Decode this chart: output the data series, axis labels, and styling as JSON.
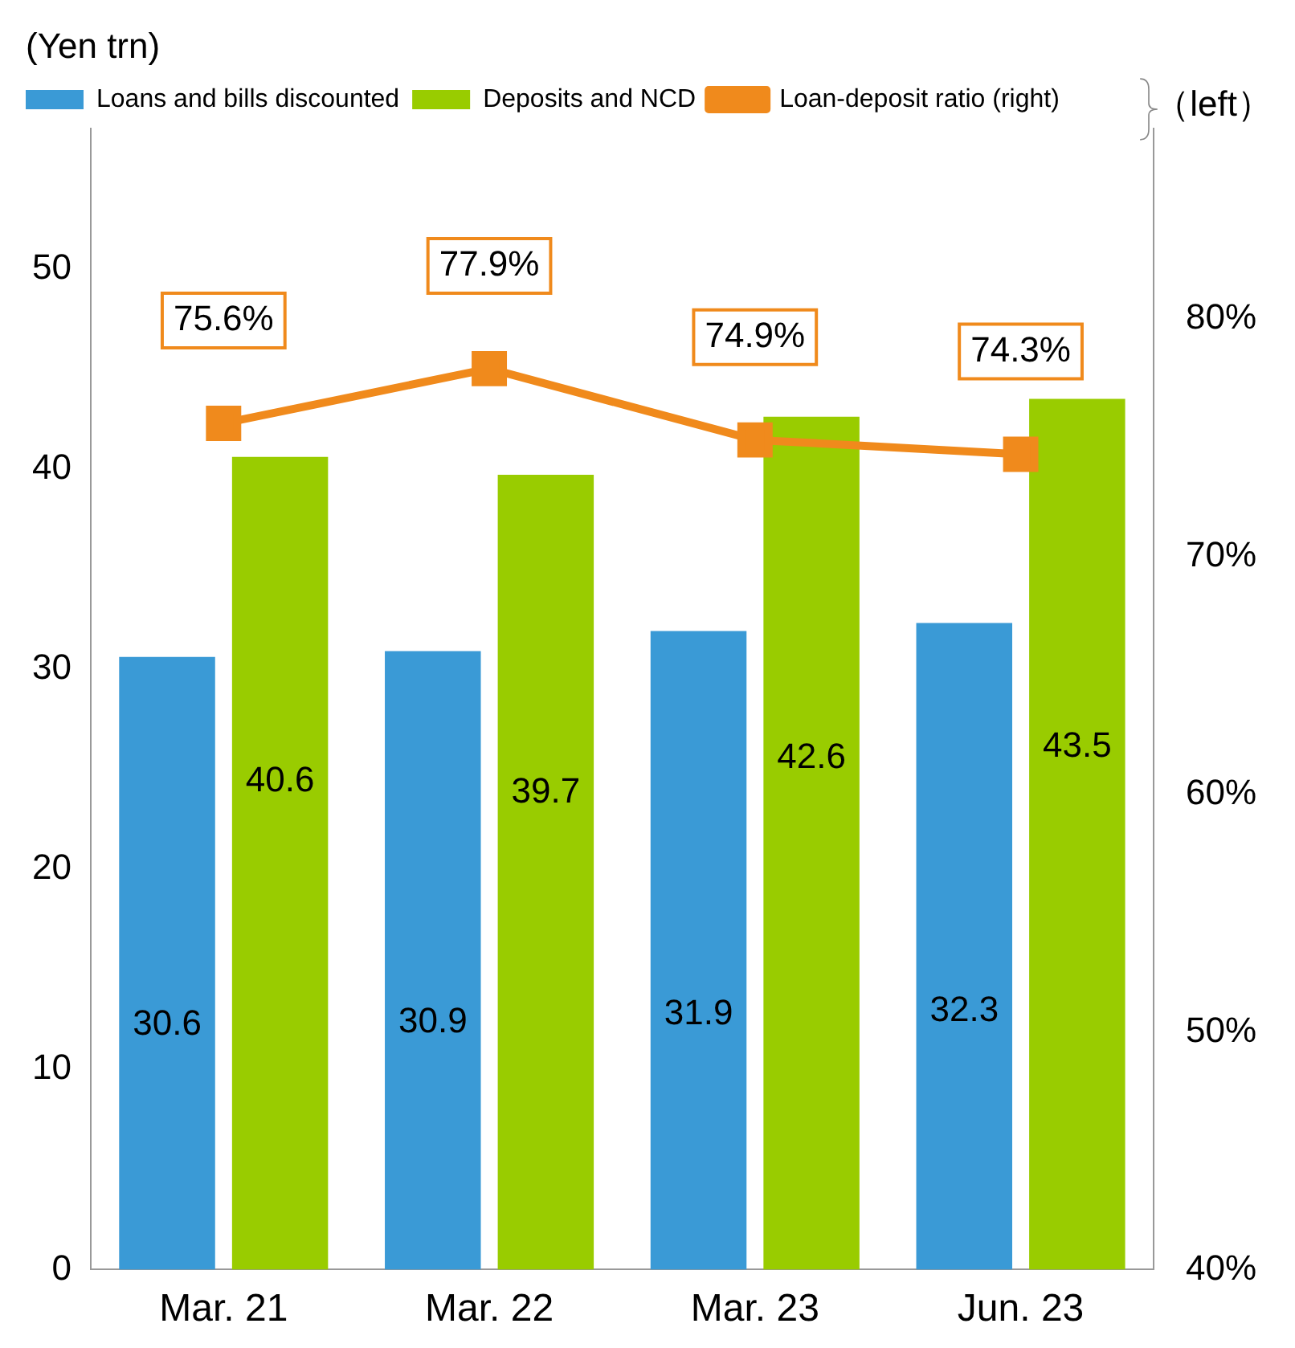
{
  "chart_data": {
    "type": "bar",
    "ylabel": "(Yen trn)",
    "categories": [
      "Mar. 21",
      "Mar. 22",
      "Mar. 23",
      "Jun. 23"
    ],
    "series": [
      {
        "name": "Loans and bills discounted",
        "color": "#3a9ad6",
        "values": [
          30.6,
          30.9,
          31.9,
          32.3
        ]
      },
      {
        "name": "Deposits and NCD",
        "color": "#99cc00",
        "values": [
          40.6,
          39.7,
          42.6,
          43.5
        ]
      },
      {
        "name": "Loan-deposit ratio (right)",
        "type": "line",
        "axis": "y2",
        "color": "#f08a1c",
        "values": [
          75.6,
          77.9,
          74.9,
          74.3
        ],
        "value_labels": [
          "75.6%",
          "77.9%",
          "74.9%",
          "74.3%"
        ]
      }
    ],
    "ylim": [
      0,
      57
    ],
    "yticks": [
      0,
      10,
      20,
      30,
      40,
      50
    ],
    "y2lim": [
      40,
      88
    ],
    "y2ticks": [
      {
        "value": 40,
        "label": "40%"
      },
      {
        "value": 50,
        "label": "50%"
      },
      {
        "value": 60,
        "label": "60%"
      },
      {
        "value": 70,
        "label": "70%"
      },
      {
        "value": 80,
        "label": "80%"
      }
    ],
    "annotations": [
      "（left）"
    ],
    "data_labels": true,
    "legend": "top",
    "grid": false,
    "marker": "square"
  }
}
